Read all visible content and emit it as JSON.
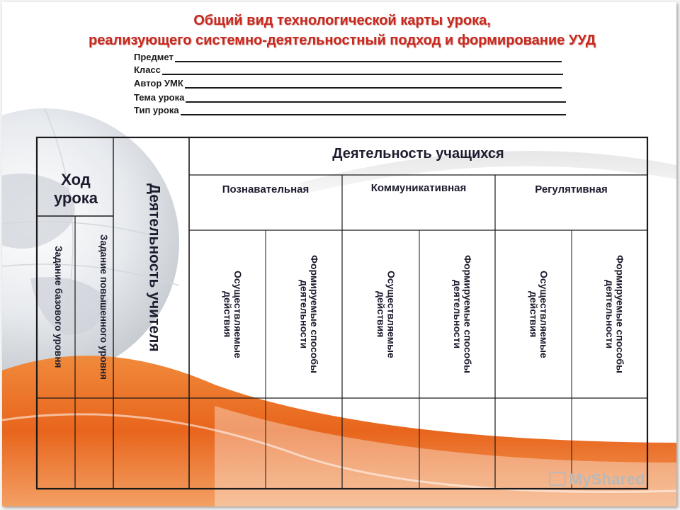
{
  "title": {
    "line1": "Общий вид технологической карты урока,",
    "line2": "реализующего системно-деятельностный подход и формирование УУД"
  },
  "fields": [
    "Предмет",
    "Класс",
    "Автор УМК",
    "Тема урока",
    "Тип урока"
  ],
  "table": {
    "hod_uroka": "Ход урока",
    "teacher_activity": "Деятельность учителя",
    "task_base": "Задание базового уровня",
    "task_advanced": "Задание повышенного уровня",
    "students_activity": "Деятельность учащихся",
    "groups": [
      "Познавательная",
      "Коммуникативная",
      "Регулятивная"
    ],
    "sub_done": "Осуществляемые действия",
    "sub_methods": "Формируемые способы деятельности"
  },
  "watermark": "MyShared",
  "colors": {
    "title": "#c8281e",
    "accent_orange": "#e8651c",
    "globe": "#d9dde2"
  }
}
